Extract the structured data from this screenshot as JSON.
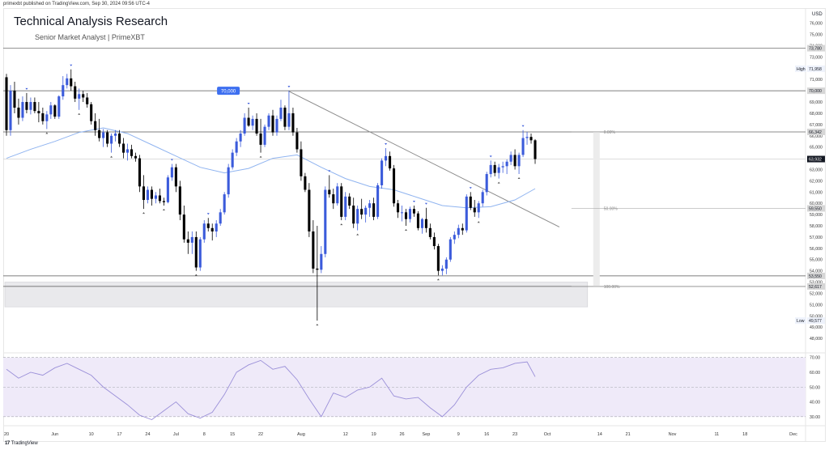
{
  "meta_line": "primexbt published on TradingView.com, Sep 30, 2024 09:56 UTC-4",
  "title": "Technical Analysis Research",
  "subtitle": "Senior Market Analyst | PrimeXBT",
  "brand": {
    "name": "TradingView",
    "icon": "tradingview-logo-icon"
  },
  "colors": {
    "bull": "#3b5bdb",
    "bear": "#000000",
    "ma": "#90b4f0",
    "rsi": "#9a8fd8",
    "rsi_band": "#efeaf9",
    "trendline": "#8a8a8a",
    "zone": "#e9e9ec",
    "label_box": "#3d6ff0"
  },
  "chart_data": {
    "type": "candlestick",
    "currency_label": "USD",
    "y_ticks": [
      48000,
      49000,
      50000,
      51000,
      52000,
      53000,
      54000,
      55000,
      56000,
      57000,
      58000,
      59000,
      60000,
      61000,
      62000,
      63000,
      64000,
      65000,
      66000,
      67000,
      68000,
      69000,
      70000,
      71000,
      72000,
      73000,
      74000,
      75000,
      76000
    ],
    "y_tick_labels": [
      "48,000",
      "49,000",
      "50,000",
      "51,000",
      "52,000",
      "53,000",
      "54,000",
      "55,000",
      "56,000",
      "57,000",
      "58,000",
      "59,000",
      "60,000",
      "61,000",
      "62,000",
      "63,000",
      "64,000",
      "65,000",
      "66,000",
      "67,000",
      "68,000",
      "69,000",
      "70,000",
      "71,000",
      "72,000",
      "73,000",
      "74,000",
      "75,000",
      "76,000"
    ],
    "y_range": [
      47000,
      77200
    ],
    "x_ticks": [
      "20",
      "Jun",
      "10",
      "17",
      "24",
      "Jul",
      "8",
      "15",
      "22",
      "Aug",
      "12",
      "19",
      "26",
      "Sep",
      "9",
      "16",
      "23",
      "Oct",
      "14",
      "21",
      "Nov",
      "11",
      "18",
      "Dec"
    ],
    "x_tick_days": [
      0,
      12,
      21,
      28,
      35,
      42,
      49,
      56,
      63,
      73,
      84,
      91,
      98,
      104,
      112,
      119,
      126,
      134,
      147,
      154,
      165,
      176,
      183,
      195
    ],
    "x_range": [
      0,
      198
    ],
    "price_labels": [
      {
        "text": "73,780",
        "value": 73780,
        "style": "gray"
      },
      {
        "text": "71,958",
        "value": 71958,
        "style": "light",
        "tag": "High"
      },
      {
        "text": "70,000",
        "value": 70000,
        "style": "gray"
      },
      {
        "text": "66,342",
        "value": 66342,
        "style": "gray"
      },
      {
        "text": "63,932",
        "value": 63932,
        "style": "dark"
      },
      {
        "text": "59,550",
        "value": 59550,
        "style": "gray"
      },
      {
        "text": "53,550",
        "value": 53550,
        "style": "gray"
      },
      {
        "text": "52,617",
        "value": 52617,
        "style": "gray"
      },
      {
        "text": "49,577",
        "value": 49577,
        "style": "light",
        "tag": "Low"
      }
    ],
    "horizontal_lines": [
      73780,
      70000,
      66342,
      63932,
      53550,
      52617
    ],
    "fib_levels": [
      {
        "label": "0.00%",
        "value": 66342
      },
      {
        "label": "50.00%",
        "value": 59550
      },
      {
        "label": "100.00%",
        "value": 52617
      }
    ],
    "callout": {
      "text": "70,000",
      "day": 59,
      "value": 70000
    },
    "support_zone": {
      "from": 50800,
      "to": 53000,
      "x_from": 0,
      "x_to": 144
    },
    "trendline": {
      "x1": 70,
      "y1": 69950,
      "x2": 137,
      "y2": 57900
    },
    "candles": [
      [
        0,
        71200,
        71500,
        66000,
        66500
      ],
      [
        1,
        66500,
        70500,
        66000,
        70000
      ],
      [
        2,
        70000,
        70800,
        68000,
        68500
      ],
      [
        3,
        68500,
        69300,
        67000,
        67600
      ],
      [
        4,
        67600,
        69500,
        67300,
        69000
      ],
      [
        5,
        69000,
        69800,
        68000,
        68300
      ],
      [
        6,
        68300,
        69400,
        67900,
        69000
      ],
      [
        7,
        69000,
        69400,
        68000,
        68200
      ],
      [
        8,
        68200,
        69000,
        67200,
        68000
      ],
      [
        9,
        68000,
        68500,
        67000,
        67300
      ],
      [
        10,
        67300,
        68200,
        66600,
        67900
      ],
      [
        11,
        67900,
        69000,
        67500,
        68700
      ],
      [
        12,
        68700,
        68800,
        67500,
        67700
      ],
      [
        13,
        67700,
        69600,
        67500,
        69500
      ],
      [
        14,
        69500,
        71300,
        69200,
        70500
      ],
      [
        15,
        70500,
        71500,
        70200,
        71100
      ],
      [
        16,
        71100,
        71900,
        70000,
        70400
      ],
      [
        17,
        70400,
        70800,
        69000,
        69300
      ],
      [
        18,
        69300,
        70200,
        68300,
        69700
      ],
      [
        19,
        69700,
        70000,
        69000,
        69400
      ],
      [
        20,
        69400,
        69800,
        68500,
        68800
      ],
      [
        21,
        68800,
        69000,
        67000,
        67300
      ],
      [
        22,
        67300,
        68000,
        66000,
        66500
      ],
      [
        23,
        66500,
        67500,
        65500,
        65800
      ],
      [
        24,
        65800,
        66600,
        65000,
        66300
      ],
      [
        25,
        66300,
        66500,
        65000,
        65300
      ],
      [
        26,
        65300,
        66200,
        64500,
        66000
      ],
      [
        27,
        66000,
        66500,
        65500,
        66200
      ],
      [
        28,
        66200,
        66500,
        65000,
        65300
      ],
      [
        29,
        65300,
        65800,
        64000,
        64500
      ],
      [
        30,
        64500,
        65300,
        63800,
        64800
      ],
      [
        31,
        64800,
        65200,
        64000,
        64200
      ],
      [
        32,
        64200,
        64500,
        63700,
        64000
      ],
      [
        33,
        64000,
        64300,
        61000,
        61500
      ],
      [
        34,
        61500,
        62500,
        59500,
        60300
      ],
      [
        35,
        60300,
        61500,
        60000,
        61200
      ],
      [
        36,
        61200,
        61500,
        59800,
        60400
      ],
      [
        37,
        60400,
        61000,
        60000,
        60700
      ],
      [
        38,
        60700,
        61300,
        60000,
        60200
      ],
      [
        39,
        60200,
        60500,
        59800,
        60100
      ],
      [
        40,
        60100,
        62500,
        60000,
        62300
      ],
      [
        41,
        62300,
        63500,
        62000,
        63200
      ],
      [
        42,
        63200,
        63500,
        61000,
        61500
      ],
      [
        43,
        61500,
        62000,
        58500,
        59000
      ],
      [
        44,
        59000,
        59800,
        56500,
        56800
      ],
      [
        45,
        56800,
        57500,
        55500,
        56500
      ],
      [
        46,
        56500,
        57500,
        55500,
        57000
      ],
      [
        47,
        57000,
        57500,
        54000,
        54300
      ],
      [
        48,
        54300,
        57000,
        54000,
        56800
      ],
      [
        49,
        56800,
        58500,
        56500,
        58200
      ],
      [
        50,
        58200,
        58700,
        57500,
        57800
      ],
      [
        51,
        57800,
        58200,
        56700,
        57500
      ],
      [
        52,
        57500,
        58500,
        57000,
        58200
      ],
      [
        53,
        58200,
        59500,
        58000,
        59200
      ],
      [
        54,
        59200,
        61000,
        59000,
        60800
      ],
      [
        55,
        60800,
        63500,
        60500,
        63200
      ],
      [
        56,
        63200,
        64800,
        63000,
        64500
      ],
      [
        57,
        64500,
        65800,
        64200,
        65500
      ],
      [
        58,
        65500,
        66500,
        65000,
        66200
      ],
      [
        59,
        66200,
        68000,
        66000,
        67600
      ],
      [
        60,
        67600,
        68500,
        66800,
        66900
      ],
      [
        61,
        66900,
        67800,
        66500,
        67500
      ],
      [
        62,
        67500,
        68000,
        66000,
        66200
      ],
      [
        63,
        66200,
        67500,
        64500,
        65200
      ],
      [
        64,
        65200,
        67000,
        65000,
        66800
      ],
      [
        65,
        66800,
        68000,
        66500,
        67800
      ],
      [
        66,
        67800,
        68300,
        66000,
        66300
      ],
      [
        67,
        66300,
        67800,
        66000,
        67500
      ],
      [
        68,
        67500,
        69200,
        67300,
        68500
      ],
      [
        69,
        68500,
        68700,
        66500,
        66800
      ],
      [
        70,
        66800,
        70000,
        66500,
        68000
      ],
      [
        71,
        68000,
        68500,
        66000,
        66300
      ],
      [
        72,
        66300,
        66700,
        64500,
        64800
      ],
      [
        73,
        64800,
        65500,
        62000,
        62400
      ],
      [
        74,
        62400,
        62700,
        61000,
        61200
      ],
      [
        75,
        61200,
        61800,
        57000,
        57500
      ],
      [
        76,
        57500,
        58500,
        53800,
        54200
      ],
      [
        77,
        54200,
        58000,
        49577,
        54100
      ],
      [
        78,
        54100,
        56200,
        53800,
        55500
      ],
      [
        79,
        55500,
        61500,
        55200,
        61200
      ],
      [
        80,
        61200,
        62500,
        60500,
        60800
      ],
      [
        81,
        60800,
        61300,
        59500,
        60000
      ],
      [
        82,
        60000,
        61800,
        59800,
        61500
      ],
      [
        83,
        61500,
        61800,
        58500,
        58800
      ],
      [
        84,
        58800,
        61000,
        58500,
        60600
      ],
      [
        85,
        60600,
        60900,
        59500,
        59800
      ],
      [
        86,
        59800,
        60500,
        57800,
        58200
      ],
      [
        87,
        58200,
        59800,
        57600,
        59500
      ],
      [
        88,
        59500,
        60400,
        58600,
        59000
      ],
      [
        89,
        59000,
        59800,
        58300,
        59600
      ],
      [
        90,
        59600,
        60300,
        58800,
        60000
      ],
      [
        91,
        60000,
        60500,
        58500,
        58800
      ],
      [
        92,
        58800,
        61800,
        58600,
        61600
      ],
      [
        93,
        61600,
        64000,
        61300,
        63800
      ],
      [
        94,
        63800,
        64900,
        63300,
        64200
      ],
      [
        95,
        64200,
        64600,
        62900,
        63100
      ],
      [
        96,
        63100,
        63400,
        59700,
        60000
      ],
      [
        97,
        60000,
        60300,
        58700,
        59200
      ],
      [
        98,
        59200,
        59800,
        58400,
        59200
      ],
      [
        99,
        59200,
        59500,
        58000,
        58600
      ],
      [
        100,
        58600,
        59700,
        58300,
        59500
      ],
      [
        101,
        59500,
        59800,
        58800,
        59100
      ],
      [
        102,
        59100,
        59300,
        57600,
        57800
      ],
      [
        103,
        57800,
        58700,
        57300,
        58600
      ],
      [
        104,
        58600,
        59600,
        57400,
        57800
      ],
      [
        105,
        57800,
        58200,
        56800,
        57000
      ],
      [
        106,
        57000,
        57400,
        55900,
        56200
      ],
      [
        107,
        56200,
        56400,
        53600,
        54000
      ],
      [
        108,
        54000,
        54500,
        53600,
        54200
      ],
      [
        109,
        54200,
        55200,
        53700,
        55000
      ],
      [
        110,
        55000,
        57000,
        54800,
        56800
      ],
      [
        111,
        56800,
        57500,
        56400,
        57200
      ],
      [
        112,
        57200,
        58100,
        56900,
        57800
      ],
      [
        113,
        57800,
        58200,
        57200,
        57600
      ],
      [
        114,
        57600,
        60800,
        57400,
        60600
      ],
      [
        115,
        60600,
        61000,
        59400,
        59600
      ],
      [
        116,
        59600,
        60300,
        58800,
        59200
      ],
      [
        117,
        59200,
        60200,
        58700,
        60000
      ],
      [
        118,
        60000,
        61200,
        59700,
        61000
      ],
      [
        119,
        61000,
        62800,
        60700,
        62600
      ],
      [
        120,
        62600,
        63800,
        62300,
        63400
      ],
      [
        121,
        63400,
        63700,
        62400,
        62700
      ],
      [
        122,
        62700,
        63500,
        62200,
        63200
      ],
      [
        123,
        63200,
        63700,
        62700,
        63300
      ],
      [
        124,
        63300,
        63900,
        62600,
        63700
      ],
      [
        125,
        63700,
        64600,
        63400,
        64300
      ],
      [
        126,
        64300,
        64800,
        63000,
        63300
      ],
      [
        127,
        63300,
        64500,
        62600,
        64300
      ],
      [
        128,
        64300,
        66500,
        64100,
        65800
      ],
      [
        129,
        65800,
        66342,
        65200,
        65900
      ],
      [
        130,
        65900,
        66200,
        65300,
        65600
      ],
      [
        131,
        65600,
        65700,
        63500,
        63932
      ]
    ],
    "ma": [
      [
        0,
        64000
      ],
      [
        6,
        64800
      ],
      [
        12,
        65500
      ],
      [
        18,
        66300
      ],
      [
        24,
        66700
      ],
      [
        30,
        66200
      ],
      [
        36,
        65200
      ],
      [
        42,
        64200
      ],
      [
        48,
        63200
      ],
      [
        54,
        62700
      ],
      [
        60,
        63100
      ],
      [
        66,
        64000
      ],
      [
        72,
        64300
      ],
      [
        78,
        63200
      ],
      [
        84,
        62200
      ],
      [
        90,
        61500
      ],
      [
        96,
        61200
      ],
      [
        102,
        60500
      ],
      [
        108,
        59800
      ],
      [
        114,
        59600
      ],
      [
        120,
        59700
      ],
      [
        126,
        60300
      ],
      [
        131,
        61300
      ]
    ],
    "rsi": {
      "levels": [
        70,
        50,
        30
      ],
      "tick_labels": [
        "70.00",
        "60.00",
        "50.00",
        "40.00",
        "30.00"
      ],
      "ticks": [
        70,
        60,
        50,
        40,
        30
      ],
      "range": [
        25,
        72
      ],
      "values": [
        [
          0,
          62
        ],
        [
          3,
          56
        ],
        [
          6,
          60
        ],
        [
          9,
          58
        ],
        [
          12,
          63
        ],
        [
          15,
          66
        ],
        [
          18,
          62
        ],
        [
          21,
          58
        ],
        [
          24,
          50
        ],
        [
          27,
          44
        ],
        [
          30,
          38
        ],
        [
          33,
          31
        ],
        [
          36,
          28
        ],
        [
          39,
          34
        ],
        [
          42,
          40
        ],
        [
          45,
          32
        ],
        [
          48,
          29
        ],
        [
          51,
          33
        ],
        [
          54,
          45
        ],
        [
          57,
          60
        ],
        [
          60,
          65
        ],
        [
          63,
          68
        ],
        [
          66,
          62
        ],
        [
          69,
          64
        ],
        [
          72,
          55
        ],
        [
          75,
          42
        ],
        [
          78,
          30
        ],
        [
          81,
          46
        ],
        [
          84,
          43
        ],
        [
          87,
          48
        ],
        [
          90,
          50
        ],
        [
          93,
          56
        ],
        [
          96,
          44
        ],
        [
          99,
          42
        ],
        [
          102,
          43
        ],
        [
          105,
          36
        ],
        [
          108,
          30
        ],
        [
          111,
          38
        ],
        [
          114,
          50
        ],
        [
          117,
          58
        ],
        [
          120,
          62
        ],
        [
          123,
          63
        ],
        [
          126,
          66
        ],
        [
          129,
          67
        ],
        [
          131,
          57
        ]
      ]
    }
  }
}
